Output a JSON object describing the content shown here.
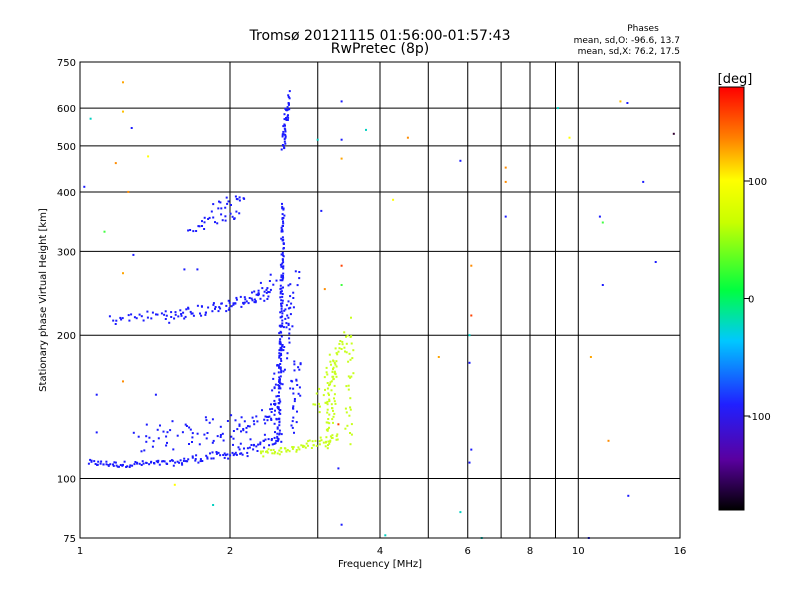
{
  "chart_data": {
    "type": "scatter",
    "title": "Tromsø 20121115 01:56:00-01:57:43",
    "subtitle": "RwPretec (8p)",
    "xlabel": "Frequency [MHz]",
    "ylabel": "Stationary phase Virtual Height [km]",
    "xscale": "log",
    "yscale": "log",
    "xlim": [
      1,
      16
    ],
    "ylim": [
      75,
      750
    ],
    "xticks": [
      1,
      2,
      4,
      6,
      8,
      10,
      16
    ],
    "xtick_labels": [
      "1",
      "2",
      "4",
      "6",
      "8",
      "10",
      "16"
    ],
    "x_minor_gridlines": [
      3,
      5,
      7,
      9
    ],
    "yticks": [
      75,
      100,
      200,
      300,
      400,
      500,
      600,
      750
    ],
    "ytick_labels": [
      "75",
      "100",
      "200",
      "300",
      "400",
      "500",
      "600",
      "750"
    ],
    "grid": true,
    "annotation": {
      "header": "Phases",
      "line1": "mean, sd,O: -96.6, 13.7",
      "line2": "mean, sd,X:  76.2, 17.5"
    },
    "colorbar": {
      "label": "[deg]",
      "range": [
        -180,
        180
      ],
      "ticks": [
        100,
        0,
        -100
      ],
      "tick_labels": [
        "100",
        "0",
        "-100"
      ]
    },
    "series": [
      {
        "color": "#1a1aff",
        "phase_mean": -96.6,
        "segments": [
          {
            "f0": 1.04,
            "f1": 1.18,
            "h0": 108,
            "h1": 107,
            "n": 22,
            "jitter": 0.012
          },
          {
            "f0": 1.18,
            "f1": 1.6,
            "h0": 107,
            "h1": 108,
            "n": 45,
            "jitter": 0.012
          },
          {
            "f0": 1.6,
            "f1": 2.2,
            "h0": 109,
            "h1": 114,
            "n": 45,
            "jitter": 0.018
          },
          {
            "f0": 2.2,
            "f1": 2.55,
            "h0": 115,
            "h1": 122,
            "n": 25,
            "jitter": 0.02
          },
          {
            "f0": 1.3,
            "f1": 2.2,
            "h0": 120,
            "h1": 130,
            "n": 60,
            "jitter": 0.06
          },
          {
            "f0": 2.0,
            "f1": 2.45,
            "h0": 118,
            "h1": 140,
            "n": 25,
            "jitter": 0.05
          },
          {
            "f0": 2.5,
            "f1": 2.56,
            "h0": 120,
            "h1": 375,
            "n": 150,
            "jitter": 0.015
          },
          {
            "f0": 2.4,
            "f1": 2.7,
            "h0": 125,
            "h1": 260,
            "n": 80,
            "jitter": 0.05
          },
          {
            "f0": 2.65,
            "f1": 2.75,
            "h0": 130,
            "h1": 175,
            "n": 30,
            "jitter": 0.05
          },
          {
            "f0": 1.15,
            "f1": 1.5,
            "h0": 215,
            "h1": 222,
            "n": 25,
            "jitter": 0.02
          },
          {
            "f0": 1.5,
            "f1": 2.0,
            "h0": 218,
            "h1": 232,
            "n": 45,
            "jitter": 0.025
          },
          {
            "f0": 2.0,
            "f1": 2.4,
            "h0": 232,
            "h1": 245,
            "n": 35,
            "jitter": 0.025
          },
          {
            "f0": 2.25,
            "f1": 2.45,
            "h0": 240,
            "h1": 265,
            "n": 15,
            "jitter": 0.03
          },
          {
            "f0": 1.75,
            "f1": 2.1,
            "h0": 345,
            "h1": 360,
            "n": 18,
            "jitter": 0.02
          },
          {
            "f0": 1.85,
            "f1": 2.15,
            "h0": 372,
            "h1": 392,
            "n": 18,
            "jitter": 0.02
          },
          {
            "f0": 1.65,
            "f1": 1.78,
            "h0": 332,
            "h1": 338,
            "n": 8,
            "jitter": 0.01
          },
          {
            "f0": 2.55,
            "f1": 2.62,
            "h0": 490,
            "h1": 640,
            "n": 45,
            "jitter": 0.02
          }
        ]
      },
      {
        "color": "#c8ff1e",
        "phase_mean": 76.2,
        "segments": [
          {
            "f0": 2.3,
            "f1": 2.8,
            "h0": 113,
            "h1": 116,
            "n": 35,
            "jitter": 0.015
          },
          {
            "f0": 2.8,
            "f1": 3.3,
            "h0": 117,
            "h1": 122,
            "n": 30,
            "jitter": 0.02
          },
          {
            "f0": 3.15,
            "f1": 3.25,
            "h0": 120,
            "h1": 180,
            "n": 55,
            "jitter": 0.04
          },
          {
            "f0": 3.0,
            "f1": 3.4,
            "h0": 140,
            "h1": 200,
            "n": 40,
            "jitter": 0.05
          },
          {
            "f0": 3.45,
            "f1": 3.5,
            "h0": 120,
            "h1": 210,
            "n": 30,
            "jitter": 0.04
          }
        ]
      }
    ],
    "noise_points": [
      {
        "f": 1.02,
        "h": 410,
        "c": "#1a1aff"
      },
      {
        "f": 1.05,
        "h": 570,
        "c": "#00d0c0"
      },
      {
        "f": 1.12,
        "h": 330,
        "c": "#40ff40"
      },
      {
        "f": 1.18,
        "h": 460,
        "c": "#ff8c00"
      },
      {
        "f": 1.22,
        "h": 680,
        "c": "#ffa500"
      },
      {
        "f": 1.22,
        "h": 590,
        "c": "#ffc000"
      },
      {
        "f": 1.27,
        "h": 545,
        "c": "#1a1aff"
      },
      {
        "f": 1.25,
        "h": 400,
        "c": "#ff8c00"
      },
      {
        "f": 1.28,
        "h": 295,
        "c": "#1a1aff"
      },
      {
        "f": 1.37,
        "h": 475,
        "c": "#ffff00"
      },
      {
        "f": 1.22,
        "h": 270,
        "c": "#ffa500"
      },
      {
        "f": 1.08,
        "h": 150,
        "c": "#1a1aff"
      },
      {
        "f": 1.08,
        "h": 125,
        "c": "#1a1aff"
      },
      {
        "f": 1.22,
        "h": 160,
        "c": "#ff8c00"
      },
      {
        "f": 1.42,
        "h": 150,
        "c": "#1a1aff"
      },
      {
        "f": 1.55,
        "h": 97,
        "c": "#ffff00"
      },
      {
        "f": 1.62,
        "h": 275,
        "c": "#1a1aff"
      },
      {
        "f": 1.72,
        "h": 275,
        "c": "#1a1aff"
      },
      {
        "f": 1.85,
        "h": 88,
        "c": "#00d0c0"
      },
      {
        "f": 3.35,
        "h": 620,
        "c": "#1a1aff"
      },
      {
        "f": 3.0,
        "h": 515,
        "c": "#00d0c0"
      },
      {
        "f": 3.35,
        "h": 515,
        "c": "#1a1aff"
      },
      {
        "f": 3.75,
        "h": 540,
        "c": "#00d0c0"
      },
      {
        "f": 4.55,
        "h": 520,
        "c": "#ff8c00"
      },
      {
        "f": 3.35,
        "h": 470,
        "c": "#ffa500"
      },
      {
        "f": 4.25,
        "h": 385,
        "c": "#ffff00"
      },
      {
        "f": 3.05,
        "h": 365,
        "c": "#1a1aff"
      },
      {
        "f": 3.35,
        "h": 280,
        "c": "#ff4000"
      },
      {
        "f": 3.35,
        "h": 255,
        "c": "#40ff40"
      },
      {
        "f": 3.1,
        "h": 250,
        "c": "#ff8c00"
      },
      {
        "f": 3.3,
        "h": 130,
        "c": "#ff4000"
      },
      {
        "f": 3.3,
        "h": 105,
        "c": "#1a1aff"
      },
      {
        "f": 3.35,
        "h": 80,
        "c": "#1a1aff"
      },
      {
        "f": 5.25,
        "h": 180,
        "c": "#ffa500"
      },
      {
        "f": 5.8,
        "h": 465,
        "c": "#1a1aff"
      },
      {
        "f": 5.8,
        "h": 85,
        "c": "#00d0c0"
      },
      {
        "f": 6.05,
        "h": 200,
        "c": "#00d0c0"
      },
      {
        "f": 6.1,
        "h": 220,
        "c": "#ff4000"
      },
      {
        "f": 6.05,
        "h": 175,
        "c": "#1a1aff"
      },
      {
        "f": 6.1,
        "h": 280,
        "c": "#ff8c00"
      },
      {
        "f": 6.1,
        "h": 115,
        "c": "#1a1aff"
      },
      {
        "f": 6.05,
        "h": 108,
        "c": "#1a1aff"
      },
      {
        "f": 7.15,
        "h": 450,
        "c": "#ff8c00"
      },
      {
        "f": 7.15,
        "h": 420,
        "c": "#ff8c00"
      },
      {
        "f": 7.15,
        "h": 355,
        "c": "#1a1aff"
      },
      {
        "f": 6.4,
        "h": 75,
        "c": "#00d0c0"
      },
      {
        "f": 4.1,
        "h": 76,
        "c": "#00d0c0"
      },
      {
        "f": 9.1,
        "h": 600,
        "c": "#00d0c0"
      },
      {
        "f": 9.6,
        "h": 520,
        "c": "#ffff00"
      },
      {
        "f": 10.6,
        "h": 180,
        "c": "#ffa500"
      },
      {
        "f": 11.05,
        "h": 355,
        "c": "#1a1aff"
      },
      {
        "f": 11.2,
        "h": 345,
        "c": "#40ff40"
      },
      {
        "f": 11.2,
        "h": 255,
        "c": "#1a1aff"
      },
      {
        "f": 11.5,
        "h": 120,
        "c": "#ff8c00"
      },
      {
        "f": 12.15,
        "h": 620,
        "c": "#ffc000"
      },
      {
        "f": 12.55,
        "h": 615,
        "c": "#1a1aff"
      },
      {
        "f": 12.6,
        "h": 92,
        "c": "#1a1aff"
      },
      {
        "f": 13.5,
        "h": 420,
        "c": "#1a1aff"
      },
      {
        "f": 14.3,
        "h": 285,
        "c": "#1a1aff"
      },
      {
        "f": 15.55,
        "h": 530,
        "c": "#300030"
      },
      {
        "f": 10.5,
        "h": 75,
        "c": "#1a1aff"
      }
    ]
  }
}
